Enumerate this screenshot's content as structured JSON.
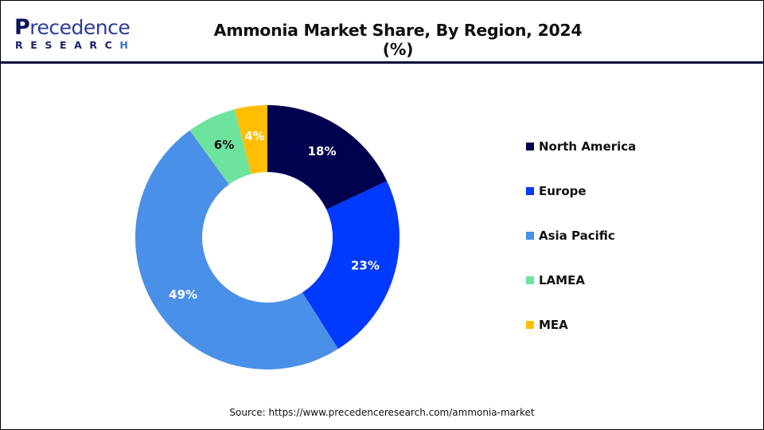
{
  "header": {
    "logo": {
      "word_top": "Precedence",
      "word_bottom": "RESEARCH"
    },
    "title": "Ammonia Market Share, By Region, 2024 (%)"
  },
  "legend": {
    "items": [
      {
        "label": "North America",
        "color": "#000250"
      },
      {
        "label": "Europe",
        "color": "#0039ff"
      },
      {
        "label": "Asia Pacific",
        "color": "#4a90e8"
      },
      {
        "label": "LAMEA",
        "color": "#6ee39e"
      },
      {
        "label": "MEA",
        "color": "#ffbf00"
      }
    ]
  },
  "footer": {
    "source": "Source: https://www.precedenceresearch.com/ammonia-market"
  },
  "chart_data": {
    "type": "pie",
    "subtype": "donut",
    "title": "Ammonia Market Share, By Region, 2024 (%)",
    "categories": [
      "North America",
      "Europe",
      "Asia Pacific",
      "LAMEA",
      "MEA"
    ],
    "values": [
      18,
      23,
      49,
      6,
      4
    ],
    "labels": [
      "18%",
      "23%",
      "49%",
      "6%",
      "4%"
    ],
    "colors": [
      "#000250",
      "#0039ff",
      "#4a90e8",
      "#6ee39e",
      "#ffbf00"
    ],
    "label_colors": [
      "#ffffff",
      "#ffffff",
      "#ffffff",
      "#111111",
      "#ffffff"
    ],
    "start_angle": "12 o'clock",
    "direction": "clockwise",
    "legend_position": "right",
    "unit": "%"
  }
}
